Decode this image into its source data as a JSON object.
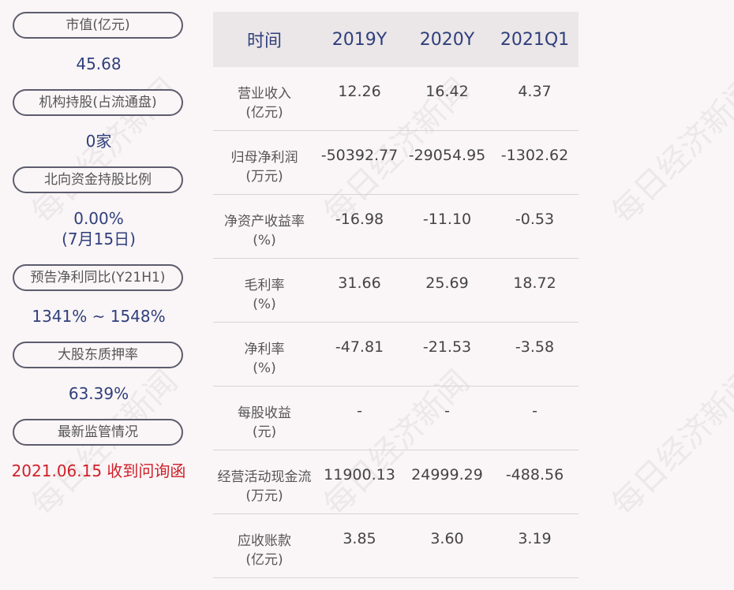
{
  "left_panel": {
    "items": [
      {
        "label": "市值(亿元)",
        "value": "45.68",
        "value2": ""
      },
      {
        "label": "机构持股(占流通盘)",
        "value": "0家",
        "value2": ""
      },
      {
        "label": "北向资金持股比例",
        "value": "0.00%",
        "value2": "(7月15日)"
      },
      {
        "label": "预告净利同比(Y21H1)",
        "value": "1341% ~ 1548%",
        "value2": ""
      },
      {
        "label": "大股东质押率",
        "value": "63.39%",
        "value2": ""
      },
      {
        "label": "最新监管情况",
        "value": "2021.06.15 收到问询函",
        "value2": ""
      }
    ]
  },
  "table": {
    "headers": [
      "时间",
      "2019Y",
      "2020Y",
      "2021Q1"
    ],
    "rows": [
      {
        "label1": "营业收入",
        "label2": "(亿元)",
        "values": [
          "12.26",
          "16.42",
          "4.37"
        ]
      },
      {
        "label1": "归母净利润",
        "label2": "(万元)",
        "values": [
          "-50392.77",
          "-29054.95",
          "-1302.62"
        ]
      },
      {
        "label1": "净资产收益率",
        "label2": "(%)",
        "values": [
          "-16.98",
          "-11.10",
          "-0.53"
        ]
      },
      {
        "label1": "毛利率",
        "label2": "(%)",
        "values": [
          "31.66",
          "25.69",
          "18.72"
        ]
      },
      {
        "label1": "净利率",
        "label2": "(%)",
        "values": [
          "-47.81",
          "-21.53",
          "-3.58"
        ]
      },
      {
        "label1": "每股收益",
        "label2": "(元)",
        "values": [
          "-",
          "-",
          "-"
        ]
      },
      {
        "label1": "经营活动现金流",
        "label2": "(万元)",
        "values": [
          "11900.13",
          "24999.29",
          "-488.56"
        ]
      },
      {
        "label1": "应收账款",
        "label2": "(亿元)",
        "values": [
          "3.85",
          "3.60",
          "3.19"
        ]
      }
    ]
  },
  "watermark": "每日经济新闻",
  "colors": {
    "accent": "#2f3f7c",
    "alert": "#d0202a",
    "header_bg": "#ebe6e7"
  }
}
